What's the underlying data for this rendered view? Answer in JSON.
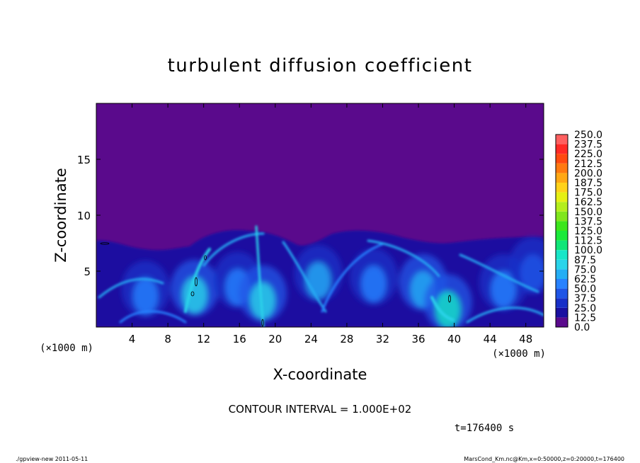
{
  "chart_data": {
    "type": "heatmap",
    "title": "turbulent diffusion coefficient",
    "xlabel": "X-coordinate",
    "ylabel": "Z-coordinate",
    "x_unit": "(×1000 m)",
    "y_unit": "(×1000 m)",
    "xlim": [
      0,
      50
    ],
    "ylim": [
      0,
      20
    ],
    "x_ticks": [
      4,
      8,
      12,
      16,
      20,
      24,
      28,
      32,
      36,
      40,
      44,
      48
    ],
    "y_ticks": [
      5,
      10,
      15
    ],
    "colorbar": {
      "levels": [
        "0.0",
        "12.5",
        "25.0",
        "37.5",
        "50.0",
        "62.5",
        "75.0",
        "87.5",
        "100.0",
        "112.5",
        "125.0",
        "137.5",
        "150.0",
        "162.5",
        "175.0",
        "187.5",
        "200.0",
        "212.5",
        "225.0",
        "237.5",
        "250.0"
      ],
      "colors": [
        "#5a0a8c",
        "#1a10a0",
        "#1830c8",
        "#1f55e6",
        "#2882ff",
        "#25aef5",
        "#2ad4ea",
        "#18e6c8",
        "#10e678",
        "#1aea3a",
        "#3ce61c",
        "#80e61c",
        "#b4ee1c",
        "#e6f014",
        "#ffd21a",
        "#ffa814",
        "#ff7a10",
        "#ff4a10",
        "#ff2a26",
        "#ff6060",
        "#ff9aa0"
      ]
    },
    "background_value": 0.0,
    "contour_interval": "CONTOUR INTERVAL = 1.000E+02",
    "time_label": "t=176400 s",
    "eddies": [
      {
        "x": 5.5,
        "z": 3.4,
        "value": 45
      },
      {
        "x": 11.0,
        "z": 3.5,
        "value": 80
      },
      {
        "x": 15.8,
        "z": 4.2,
        "value": 55
      },
      {
        "x": 18.6,
        "z": 3.0,
        "value": 75
      },
      {
        "x": 24.8,
        "z": 4.8,
        "value": 60
      },
      {
        "x": 31.0,
        "z": 4.5,
        "value": 50
      },
      {
        "x": 36.5,
        "z": 4.0,
        "value": 65
      },
      {
        "x": 39.3,
        "z": 2.2,
        "value": 85
      },
      {
        "x": 45.5,
        "z": 4.0,
        "value": 45
      },
      {
        "x": 48.8,
        "z": 5.5,
        "value": 40
      }
    ]
  },
  "footer": {
    "left": "./gpview-new   2011-05-11",
    "right": "MarsCond_Km.nc@Km,x=0:50000,z=0:20000,t=176400"
  }
}
